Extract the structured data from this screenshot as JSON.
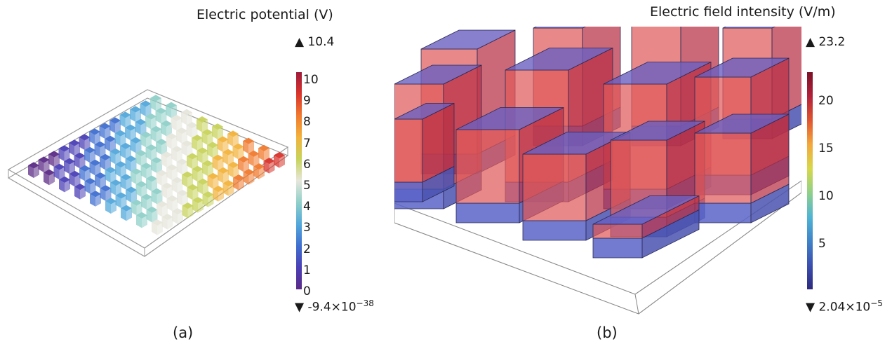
{
  "panel_a": {
    "title": "Electric potential (V)",
    "max_label": "10.4",
    "min_label": "-9.4×10",
    "min_exp": "−38",
    "ticks": [
      "10",
      "9",
      "8",
      "7",
      "6",
      "5",
      "4",
      "3",
      "2",
      "1",
      "0"
    ],
    "caption": "(a)",
    "colorbar": [
      "#5b2a86",
      "#4b3fb6",
      "#3f6fd0",
      "#52a8db",
      "#8fd0c8",
      "#e6e6dc",
      "#c7d35b",
      "#f2b33c",
      "#f07a2e",
      "#d9342b",
      "#9e1b3b"
    ]
  },
  "panel_b": {
    "title": "Electric field intensity (V/m)",
    "max_label": "23.2",
    "min_label": "2.04×10",
    "min_exp": "−5",
    "ticks": [
      "20",
      "15",
      "10",
      "5"
    ],
    "caption": "(b)",
    "colorbar": [
      "#2d2a7e",
      "#3b4fb0",
      "#3f83c9",
      "#4fb5d4",
      "#8fd08a",
      "#d6d84a",
      "#f3a83b",
      "#e0552f",
      "#b2203a",
      "#7b1125"
    ]
  }
}
